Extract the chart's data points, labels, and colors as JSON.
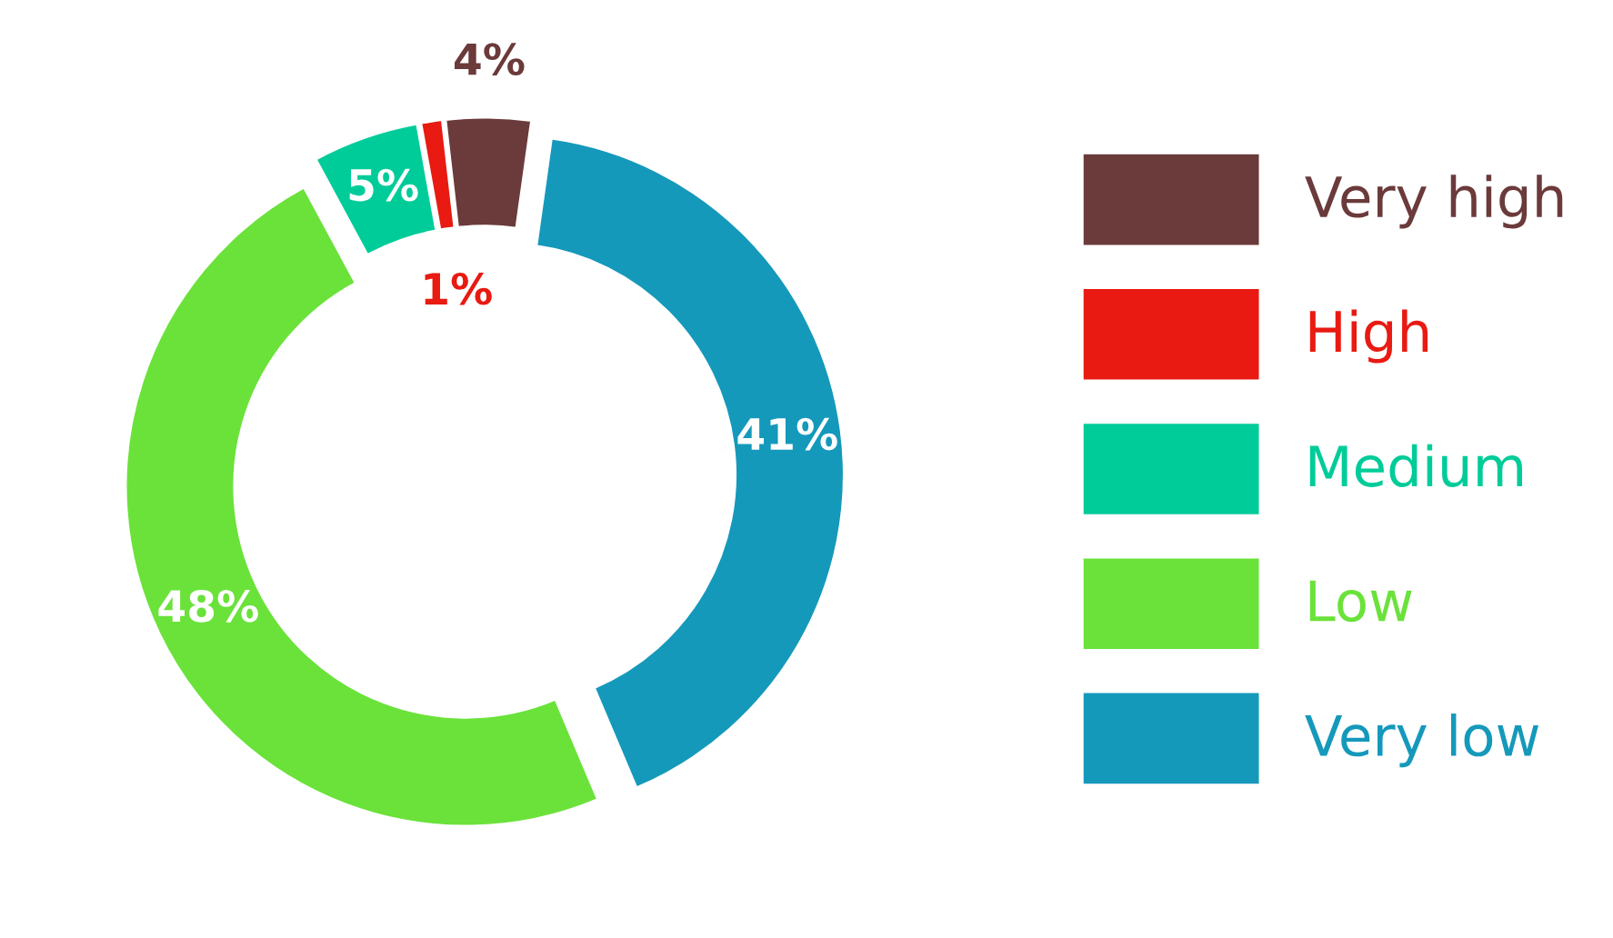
{
  "chart_data": {
    "type": "donut",
    "categories": [
      "Very high",
      "High",
      "Medium",
      "Low",
      "Very low"
    ],
    "values": [
      4,
      1,
      5,
      48,
      41
    ],
    "colors": [
      "#6b3a3a",
      "#e81a12",
      "#00cc99",
      "#6ae23a",
      "#1599bb"
    ],
    "value_labels": [
      "4%",
      "1%",
      "5%",
      "48%",
      "41%"
    ],
    "legend": "right"
  }
}
